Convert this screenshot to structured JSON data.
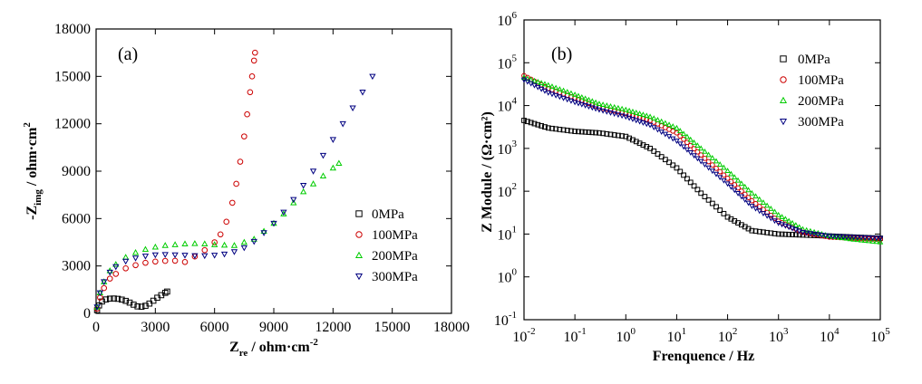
{
  "chart_data": [
    {
      "type": "scatter",
      "panel_label": "(a)",
      "xlabel": {
        "main": "Z",
        "sub": "re",
        "rest": " / ohm·cm",
        "sup": "-2"
      },
      "ylabel": {
        "lead": "-Z",
        "sub": "img",
        "rest": " / ohm·cm",
        "sup": "2"
      },
      "xlim": [
        0,
        18000
      ],
      "ylim": [
        0,
        18000
      ],
      "xticks": [
        "0",
        "3000",
        "6000",
        "9000",
        "12000",
        "15000",
        "18000"
      ],
      "yticks": [
        "0",
        "3000",
        "6000",
        "9000",
        "12000",
        "15000",
        "18000"
      ],
      "legend_position": "center-right",
      "series": [
        {
          "name": "0MPa",
          "marker": "square",
          "color": "#000000",
          "x": [
            50,
            150,
            300,
            500,
            700,
            900,
            1100,
            1300,
            1500,
            1700,
            1900,
            2100,
            2300,
            2500,
            2700,
            2900,
            3100,
            3300,
            3500,
            3600
          ],
          "y": [
            200,
            500,
            750,
            880,
            930,
            940,
            920,
            870,
            790,
            680,
            550,
            440,
            420,
            480,
            620,
            800,
            990,
            1150,
            1300,
            1380
          ]
        },
        {
          "name": "100MPa",
          "marker": "circle",
          "color": "#cc0000",
          "x": [
            50,
            200,
            400,
            700,
            1000,
            1500,
            2000,
            2500,
            3000,
            3500,
            4000,
            4500,
            5000,
            5500,
            6000,
            6300,
            6600,
            6900,
            7100,
            7300,
            7500,
            7650,
            7800,
            7900,
            8000,
            8050
          ],
          "y": [
            300,
            1000,
            1600,
            2200,
            2500,
            2850,
            3050,
            3200,
            3280,
            3320,
            3330,
            3250,
            3600,
            4000,
            4500,
            5000,
            5800,
            7000,
            8200,
            9600,
            11200,
            12600,
            14000,
            15000,
            16000,
            16500
          ]
        },
        {
          "name": "200MPa",
          "marker": "triangle-up",
          "color": "#00cc00",
          "x": [
            50,
            200,
            400,
            700,
            1000,
            1500,
            2000,
            2500,
            3000,
            3500,
            4000,
            4500,
            5000,
            5500,
            6000,
            6500,
            7000,
            7500,
            8000,
            8500,
            9000,
            9500,
            10000,
            10500,
            11000,
            11500,
            12000,
            12300
          ],
          "y": [
            400,
            1300,
            2000,
            2700,
            3100,
            3550,
            3850,
            4050,
            4200,
            4300,
            4350,
            4400,
            4420,
            4400,
            4350,
            4320,
            4300,
            4500,
            4700,
            5200,
            5700,
            6300,
            7000,
            7700,
            8200,
            8700,
            9200,
            9500
          ]
        },
        {
          "name": "300MPa",
          "marker": "triangle-down",
          "color": "#000080",
          "x": [
            50,
            200,
            400,
            700,
            1000,
            1500,
            2000,
            2500,
            3000,
            3500,
            4000,
            4500,
            5000,
            5500,
            6000,
            6500,
            7000,
            7500,
            8000,
            8500,
            9000,
            9500,
            10000,
            10500,
            11000,
            11500,
            12000,
            12500,
            13000,
            13500,
            14000
          ],
          "y": [
            400,
            1300,
            2000,
            2600,
            2950,
            3300,
            3500,
            3620,
            3700,
            3720,
            3700,
            3680,
            3650,
            3650,
            3680,
            3750,
            3900,
            4150,
            4550,
            5100,
            5700,
            6400,
            7200,
            8100,
            9000,
            10000,
            11000,
            12000,
            13000,
            14000,
            15000
          ]
        }
      ]
    },
    {
      "type": "scatter",
      "panel_label": "(b)",
      "xscale": "log",
      "yscale": "log",
      "xlabel": "Frenquence / Hz",
      "ylabel": "Z Module / (Ω·cm²)",
      "xlim": [
        0.01,
        100000
      ],
      "ylim": [
        0.1,
        1000000
      ],
      "xticks": [
        {
          "base": "10",
          "exp": "-2",
          "value": 0.01
        },
        {
          "base": "10",
          "exp": "-1",
          "value": 0.1
        },
        {
          "base": "10",
          "exp": "0",
          "value": 1
        },
        {
          "base": "10",
          "exp": "1",
          "value": 10
        },
        {
          "base": "10",
          "exp": "2",
          "value": 100
        },
        {
          "base": "10",
          "exp": "3",
          "value": 1000
        },
        {
          "base": "10",
          "exp": "4",
          "value": 10000
        },
        {
          "base": "10",
          "exp": "5",
          "value": 100000
        }
      ],
      "yticks": [
        {
          "base": "10",
          "exp": "-1",
          "value": 0.1
        },
        {
          "base": "10",
          "exp": "0",
          "value": 1
        },
        {
          "base": "10",
          "exp": "1",
          "value": 10
        },
        {
          "base": "10",
          "exp": "2",
          "value": 100
        },
        {
          "base": "10",
          "exp": "3",
          "value": 1000
        },
        {
          "base": "10",
          "exp": "4",
          "value": 10000
        },
        {
          "base": "10",
          "exp": "5",
          "value": 100000
        },
        {
          "base": "10",
          "exp": "6",
          "value": 1000000
        }
      ],
      "legend_position": "top-right",
      "series": [
        {
          "name": "0MPa",
          "marker": "square",
          "color": "#000000",
          "x": [
            0.01,
            0.03,
            0.1,
            0.3,
            1,
            3,
            10,
            30,
            100,
            300,
            1000,
            3000,
            10000,
            30000,
            100000
          ],
          "y": [
            4500,
            3000,
            2500,
            2300,
            1900,
            1000,
            350,
            90,
            25,
            12,
            10,
            9.5,
            9,
            8.5,
            8
          ]
        },
        {
          "name": "100MPa",
          "marker": "circle",
          "color": "#cc0000",
          "x": [
            0.01,
            0.03,
            0.1,
            0.3,
            1,
            3,
            10,
            30,
            100,
            300,
            1000,
            3000,
            10000,
            30000,
            100000
          ],
          "y": [
            50000,
            25000,
            15000,
            9000,
            6500,
            4500,
            2300,
            700,
            200,
            60,
            20,
            11,
            8.5,
            8,
            7.5
          ]
        },
        {
          "name": "200MPa",
          "marker": "triangle-up",
          "color": "#00cc00",
          "x": [
            0.01,
            0.03,
            0.1,
            0.3,
            1,
            3,
            10,
            30,
            100,
            300,
            1000,
            3000,
            10000,
            30000,
            100000
          ],
          "y": [
            45000,
            30000,
            18000,
            11000,
            8000,
            5500,
            3000,
            1000,
            300,
            90,
            28,
            13,
            9,
            7.5,
            6.5
          ]
        },
        {
          "name": "300MPa",
          "marker": "triangle-down",
          "color": "#000080",
          "x": [
            0.01,
            0.03,
            0.1,
            0.3,
            1,
            3,
            10,
            30,
            100,
            300,
            1000,
            3000,
            10000,
            30000,
            100000
          ],
          "y": [
            40000,
            20000,
            12000,
            8000,
            5500,
            3500,
            1500,
            500,
            150,
            45,
            18,
            11,
            9,
            8.5,
            8
          ]
        }
      ]
    }
  ]
}
